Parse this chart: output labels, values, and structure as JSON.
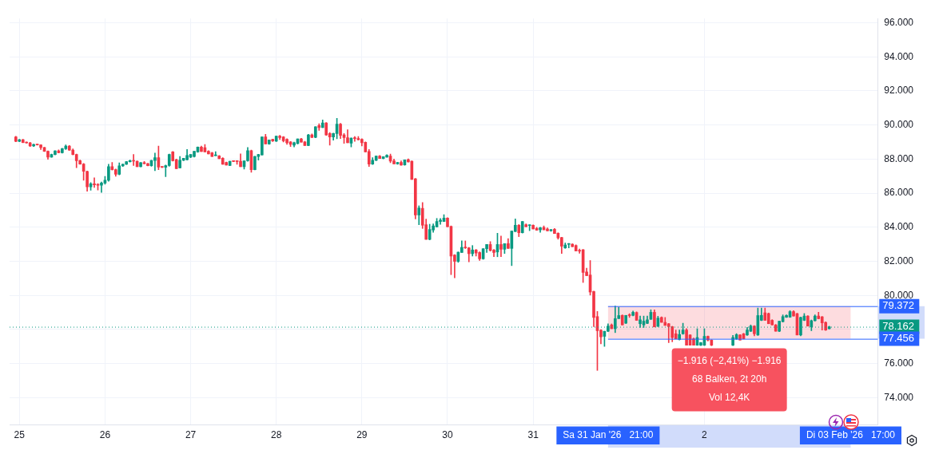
{
  "chart_data": {
    "type": "candlestick",
    "x": [
      "2026-01-24T23:00",
      "2026-01-25T00:00",
      "2026-01-25T01:00",
      "2026-01-25T02:00",
      "2026-01-25T03:00",
      "2026-01-25T04:00",
      "2026-01-25T05:00",
      "2026-01-25T06:00",
      "2026-01-25T07:00",
      "2026-01-25T08:00",
      "2026-01-25T09:00",
      "2026-01-25T10:00",
      "2026-01-25T11:00",
      "2026-01-25T12:00",
      "2026-01-25T13:00",
      "2026-01-25T14:00",
      "2026-01-25T15:00",
      "2026-01-25T16:00",
      "2026-01-25T17:00",
      "2026-01-25T18:00",
      "2026-01-25T19:00",
      "2026-01-25T20:00",
      "2026-01-25T21:00",
      "2026-01-25T22:00",
      "2026-01-25T23:00",
      "2026-01-26T00:00",
      "2026-01-26T01:00",
      "2026-01-26T02:00",
      "2026-01-26T03:00",
      "2026-01-26T04:00",
      "2026-01-26T05:00",
      "2026-01-26T06:00",
      "2026-01-26T07:00",
      "2026-01-26T08:00",
      "2026-01-26T09:00",
      "2026-01-26T10:00",
      "2026-01-26T11:00",
      "2026-01-26T12:00",
      "2026-01-26T13:00",
      "2026-01-26T14:00",
      "2026-01-26T15:00",
      "2026-01-26T16:00",
      "2026-01-26T17:00",
      "2026-01-26T18:00",
      "2026-01-26T19:00",
      "2026-01-26T20:00",
      "2026-01-26T21:00",
      "2026-01-26T22:00",
      "2026-01-26T23:00",
      "2026-01-27T00:00",
      "2026-01-27T01:00",
      "2026-01-27T02:00",
      "2026-01-27T03:00",
      "2026-01-27T04:00",
      "2026-01-27T05:00",
      "2026-01-27T06:00",
      "2026-01-27T07:00",
      "2026-01-27T08:00",
      "2026-01-27T09:00",
      "2026-01-27T10:00",
      "2026-01-27T11:00",
      "2026-01-27T12:00",
      "2026-01-27T13:00",
      "2026-01-27T14:00",
      "2026-01-27T15:00",
      "2026-01-27T16:00",
      "2026-01-27T17:00",
      "2026-01-27T18:00",
      "2026-01-27T19:00",
      "2026-01-27T20:00",
      "2026-01-27T21:00",
      "2026-01-27T22:00",
      "2026-01-27T23:00",
      "2026-01-28T00:00",
      "2026-01-28T01:00",
      "2026-01-28T02:00",
      "2026-01-28T03:00",
      "2026-01-28T04:00",
      "2026-01-28T05:00",
      "2026-01-28T06:00",
      "2026-01-28T07:00",
      "2026-01-28T08:00",
      "2026-01-28T09:00",
      "2026-01-28T10:00",
      "2026-01-28T11:00",
      "2026-01-28T12:00",
      "2026-01-28T13:00",
      "2026-01-28T14:00",
      "2026-01-28T15:00",
      "2026-01-28T16:00",
      "2026-01-28T17:00",
      "2026-01-28T18:00",
      "2026-01-28T19:00",
      "2026-01-28T20:00",
      "2026-01-28T21:00",
      "2026-01-28T22:00",
      "2026-01-28T23:00",
      "2026-01-29T00:00",
      "2026-01-29T01:00",
      "2026-01-29T02:00",
      "2026-01-29T03:00",
      "2026-01-29T04:00",
      "2026-01-29T05:00",
      "2026-01-29T06:00",
      "2026-01-29T07:00",
      "2026-01-29T08:00",
      "2026-01-29T09:00",
      "2026-01-29T10:00",
      "2026-01-29T11:00",
      "2026-01-29T12:00",
      "2026-01-29T13:00",
      "2026-01-29T14:00",
      "2026-01-29T15:00",
      "2026-01-29T16:00",
      "2026-01-29T17:00",
      "2026-01-29T18:00",
      "2026-01-29T19:00",
      "2026-01-29T20:00",
      "2026-01-29T21:00",
      "2026-01-29T22:00",
      "2026-01-29T23:00",
      "2026-01-30T00:00",
      "2026-01-30T01:00",
      "2026-01-30T02:00",
      "2026-01-30T03:00",
      "2026-01-30T04:00",
      "2026-01-30T05:00",
      "2026-01-30T06:00",
      "2026-01-30T07:00",
      "2026-01-30T08:00",
      "2026-01-30T09:00",
      "2026-01-30T10:00",
      "2026-01-30T11:00",
      "2026-01-30T12:00",
      "2026-01-30T13:00",
      "2026-01-30T14:00",
      "2026-01-30T15:00",
      "2026-01-30T16:00",
      "2026-01-30T17:00",
      "2026-01-30T18:00",
      "2026-01-30T19:00",
      "2026-01-30T20:00",
      "2026-01-30T21:00",
      "2026-01-30T22:00",
      "2026-01-30T23:00",
      "2026-01-31T00:00",
      "2026-01-31T01:00",
      "2026-01-31T02:00",
      "2026-01-31T03:00",
      "2026-01-31T04:00",
      "2026-01-31T05:00",
      "2026-01-31T06:00",
      "2026-01-31T07:00",
      "2026-01-31T08:00",
      "2026-01-31T09:00",
      "2026-01-31T10:00",
      "2026-01-31T11:00",
      "2026-01-31T12:00",
      "2026-01-31T13:00",
      "2026-01-31T14:00",
      "2026-01-31T15:00",
      "2026-01-31T16:00",
      "2026-01-31T17:00",
      "2026-01-31T18:00",
      "2026-01-31T19:00",
      "2026-01-31T20:00",
      "2026-01-31T21:00",
      "2026-01-31T22:00",
      "2026-01-31T23:00",
      "2026-02-01T00:00",
      "2026-02-01T01:00",
      "2026-02-01T02:00",
      "2026-02-01T03:00",
      "2026-02-01T04:00",
      "2026-02-01T05:00",
      "2026-02-01T06:00",
      "2026-02-01T07:00",
      "2026-02-01T08:00",
      "2026-02-01T09:00",
      "2026-02-01T10:00",
      "2026-02-01T11:00",
      "2026-02-01T12:00",
      "2026-02-01T13:00",
      "2026-02-01T14:00",
      "2026-02-01T15:00",
      "2026-02-01T16:00",
      "2026-02-01T17:00",
      "2026-02-01T18:00",
      "2026-02-01T19:00",
      "2026-02-01T20:00",
      "2026-02-01T21:00",
      "2026-02-01T22:00",
      "2026-02-01T23:00",
      "2026-02-02T00:00",
      "2026-02-02T01:00",
      "2026-02-02T02:00",
      "2026-02-02T08:00",
      "2026-02-02T09:00",
      "2026-02-02T10:00",
      "2026-02-02T11:00",
      "2026-02-02T12:00",
      "2026-02-02T13:00",
      "2026-02-02T14:00",
      "2026-02-02T15:00",
      "2026-02-02T16:00",
      "2026-02-02T17:00",
      "2026-02-02T18:00",
      "2026-02-02T19:00",
      "2026-02-02T20:00",
      "2026-02-02T21:00",
      "2026-02-02T22:00",
      "2026-02-02T23:00",
      "2026-02-03T00:00",
      "2026-02-03T01:00",
      "2026-02-03T02:00",
      "2026-02-03T03:00",
      "2026-02-03T04:00",
      "2026-02-03T05:00",
      "2026-02-03T06:00",
      "2026-02-03T07:00",
      "2026-02-03T08:00",
      "2026-02-03T09:00",
      "2026-02-03T10:00",
      "2026-02-03T11:00"
    ],
    "ohlc": [
      [
        89300,
        89340,
        89020,
        89040
      ],
      [
        89040,
        89160,
        89020,
        89140
      ],
      [
        89140,
        89160,
        88960,
        88970
      ],
      [
        88970,
        89010,
        88930,
        88950
      ],
      [
        88950,
        88990,
        88740,
        88770
      ],
      [
        88770,
        88880,
        88740,
        88860
      ],
      [
        88860,
        88880,
        88820,
        88830
      ],
      [
        88830,
        88850,
        88560,
        88680
      ],
      [
        88680,
        88700,
        88450,
        88460
      ],
      [
        88460,
        88480,
        87990,
        88120
      ],
      [
        88120,
        88300,
        88100,
        88270
      ],
      [
        88270,
        88500,
        88250,
        88480
      ],
      [
        88480,
        88540,
        88360,
        88370
      ],
      [
        88370,
        88640,
        88350,
        88610
      ],
      [
        88610,
        88840,
        88560,
        88770
      ],
      [
        88770,
        88800,
        88520,
        88530
      ],
      [
        88530,
        88600,
        88250,
        88270
      ],
      [
        88270,
        88300,
        87500,
        87910
      ],
      [
        87910,
        87950,
        87700,
        87710
      ],
      [
        87710,
        87750,
        86760,
        87280
      ],
      [
        87280,
        87300,
        86110,
        86370
      ],
      [
        86370,
        86620,
        86170,
        86550
      ],
      [
        86550,
        86900,
        86340,
        86490
      ],
      [
        86490,
        86560,
        86190,
        86470
      ],
      [
        86470,
        86660,
        86050,
        86600
      ],
      [
        86600,
        86990,
        86530,
        86760
      ],
      [
        86760,
        87700,
        86700,
        87560
      ],
      [
        87560,
        87810,
        87360,
        87380
      ],
      [
        87380,
        87420,
        86990,
        87110
      ],
      [
        87110,
        87780,
        87080,
        87600
      ],
      [
        87600,
        87710,
        87570,
        87700
      ],
      [
        87700,
        87860,
        87680,
        87850
      ],
      [
        87850,
        87940,
        87820,
        87910
      ],
      [
        87910,
        88270,
        87620,
        87880
      ],
      [
        87880,
        87900,
        87560,
        87560
      ],
      [
        87560,
        87800,
        87540,
        87790
      ],
      [
        87790,
        87860,
        87720,
        87730
      ],
      [
        87730,
        87760,
        87600,
        87610
      ],
      [
        87610,
        87930,
        87580,
        87920
      ],
      [
        87920,
        88360,
        87320,
        88090
      ],
      [
        88090,
        88760,
        87380,
        87530
      ],
      [
        87530,
        87560,
        87500,
        87520
      ],
      [
        87520,
        87650,
        86970,
        87620
      ],
      [
        87620,
        88300,
        87580,
        88270
      ],
      [
        88420,
        88450,
        87880,
        87900
      ],
      [
        87970,
        88000,
        87440,
        87440
      ],
      [
        87480,
        88150,
        87470,
        87930
      ],
      [
        87930,
        88050,
        87900,
        88050
      ],
      [
        87970,
        88560,
        87940,
        88220
      ],
      [
        88120,
        88270,
        88080,
        88270
      ],
      [
        88150,
        88460,
        88120,
        88460
      ],
      [
        88420,
        88720,
        88400,
        88710
      ],
      [
        88710,
        88770,
        88440,
        88450
      ],
      [
        88670,
        88860,
        88420,
        88420
      ],
      [
        88460,
        88490,
        88300,
        88300
      ],
      [
        88370,
        88400,
        88150,
        88150
      ],
      [
        88200,
        88440,
        88200,
        88230
      ],
      [
        88190,
        88210,
        88020,
        88020
      ],
      [
        88050,
        88080,
        87700,
        87700
      ],
      [
        87800,
        87830,
        87650,
        87650
      ],
      [
        87630,
        87870,
        87610,
        87870
      ],
      [
        87880,
        87900,
        87850,
        87860
      ],
      [
        87880,
        87900,
        87700,
        87860
      ],
      [
        87870,
        88310,
        87550,
        87560
      ],
      [
        87560,
        87900,
        87420,
        87900
      ],
      [
        87900,
        88680,
        87870,
        88490
      ],
      [
        88490,
        88530,
        87230,
        87380
      ],
      [
        87380,
        88170,
        87370,
        88150
      ],
      [
        88150,
        88290,
        87940,
        88270
      ],
      [
        88240,
        89300,
        88230,
        89300
      ],
      [
        89300,
        89450,
        88890,
        88890
      ],
      [
        88890,
        89130,
        88870,
        89130
      ],
      [
        89160,
        89180,
        89030,
        89060
      ],
      [
        89050,
        89350,
        89030,
        89350
      ],
      [
        89350,
        89400,
        89150,
        89260
      ],
      [
        89300,
        89330,
        89010,
        89080
      ],
      [
        89160,
        89200,
        88860,
        88960
      ],
      [
        89010,
        89030,
        88740,
        88860
      ],
      [
        88820,
        89000,
        88710,
        88960
      ],
      [
        88910,
        89190,
        88890,
        89190
      ],
      [
        89190,
        89220,
        88990,
        88990
      ],
      [
        89010,
        89040,
        88790,
        88790
      ],
      [
        88790,
        89450,
        88780,
        89420
      ],
      [
        89420,
        89480,
        89250,
        89280
      ],
      [
        89280,
        89900,
        89250,
        89900
      ],
      [
        89970,
        90080,
        89680,
        89850
      ],
      [
        89850,
        90300,
        89850,
        90120
      ],
      [
        90120,
        90150,
        89390,
        89420
      ],
      [
        89500,
        89560,
        88820,
        89300
      ],
      [
        89300,
        89520,
        89110,
        89500
      ],
      [
        89500,
        90390,
        89190,
        90050
      ],
      [
        90050,
        90100,
        89200,
        89390
      ],
      [
        89420,
        89500,
        88920,
        89260
      ],
      [
        89260,
        89720,
        88960,
        88960
      ],
      [
        88940,
        89250,
        88710,
        89230
      ],
      [
        89230,
        89330,
        89040,
        89210
      ],
      [
        89210,
        89330,
        89120,
        89130
      ],
      [
        89160,
        89200,
        88770,
        88960
      ],
      [
        88990,
        89010,
        88420,
        88420
      ],
      [
        88450,
        88570,
        87570,
        87710
      ],
      [
        87710,
        88080,
        87680,
        87930
      ],
      [
        87930,
        88190,
        87900,
        88180
      ],
      [
        88180,
        88210,
        88030,
        88030
      ],
      [
        88030,
        88140,
        88010,
        88140
      ],
      [
        88120,
        88260,
        88100,
        88230
      ],
      [
        88180,
        88300,
        87790,
        87880
      ],
      [
        87900,
        88000,
        87720,
        87720
      ],
      [
        87720,
        87820,
        87700,
        87810
      ],
      [
        87800,
        87900,
        87640,
        87650
      ],
      [
        87660,
        87960,
        87640,
        87960
      ],
      [
        87970,
        88020,
        87820,
        87830
      ],
      [
        87880,
        87900,
        86800,
        86810
      ],
      [
        86850,
        86870,
        84490,
        84720
      ],
      [
        84720,
        85260,
        84150,
        85130
      ],
      [
        85110,
        85450,
        83930,
        84120
      ],
      [
        84150,
        84480,
        83290,
        83290
      ],
      [
        83290,
        84180,
        83260,
        83870
      ],
      [
        83840,
        84200,
        83700,
        84080
      ],
      [
        84020,
        84520,
        84020,
        84340
      ],
      [
        84340,
        84520,
        84170,
        84420
      ],
      [
        84340,
        84740,
        84330,
        84540
      ],
      [
        84540,
        84560,
        84030,
        84030
      ],
      [
        84050,
        84080,
        81220,
        82310
      ],
      [
        82370,
        82400,
        81040,
        82000
      ],
      [
        82000,
        82550,
        81940,
        82540
      ],
      [
        82520,
        83200,
        82520,
        82820
      ],
      [
        82820,
        83200,
        82750,
        82790
      ],
      [
        82790,
        82820,
        81970,
        82450
      ],
      [
        82450,
        82930,
        82310,
        82670
      ],
      [
        82670,
        82700,
        82310,
        82490
      ],
      [
        82520,
        82560,
        82050,
        82150
      ],
      [
        82150,
        82750,
        82120,
        82740
      ],
      [
        82740,
        82990,
        82520,
        82990
      ],
      [
        82990,
        83160,
        82600,
        82640
      ],
      [
        82660,
        82700,
        82270,
        82520
      ],
      [
        82550,
        83650,
        82270,
        82990
      ],
      [
        82990,
        83480,
        82270,
        82710
      ],
      [
        82710,
        83040,
        82460,
        83040
      ],
      [
        83040,
        83330,
        82760,
        82760
      ],
      [
        82760,
        83780,
        81750,
        83780
      ],
      [
        83750,
        84490,
        83740,
        84120
      ],
      [
        84120,
        84160,
        83450,
        83680
      ],
      [
        83680,
        84340,
        83660,
        84340
      ],
      [
        84150,
        84200,
        84030,
        84030
      ],
      [
        84100,
        84150,
        83800,
        84140
      ],
      [
        84120,
        84140,
        83900,
        83900
      ],
      [
        83940,
        84000,
        83820,
        83830
      ],
      [
        83850,
        84000,
        83700,
        83970
      ],
      [
        83990,
        84080,
        83850,
        83850
      ],
      [
        83900,
        83960,
        83780,
        83790
      ],
      [
        83800,
        83880,
        83760,
        83860
      ],
      [
        83880,
        83930,
        83630,
        83630
      ],
      [
        83650,
        83680,
        83300,
        83380
      ],
      [
        83400,
        83420,
        82460,
        82890
      ],
      [
        82790,
        83080,
        82760,
        82960
      ],
      [
        83000,
        83050,
        82790,
        83010
      ],
      [
        83010,
        83030,
        82860,
        82860
      ],
      [
        82930,
        82970,
        82610,
        82610
      ],
      [
        82610,
        82720,
        82480,
        82600
      ],
      [
        82680,
        82700,
        80760,
        81350
      ],
      [
        81380,
        81600,
        81160,
        81160
      ],
      [
        81200,
        82050,
        80020,
        80200
      ],
      [
        80230,
        80250,
        78170,
        78710
      ],
      [
        78760,
        79060,
        75600,
        77930
      ],
      [
        77960,
        78000,
        77160,
        77570
      ],
      [
        77600,
        77900,
        77010,
        77900
      ],
      [
        77900,
        78340,
        77880,
        78200
      ],
      [
        78270,
        78330,
        78050,
        78050
      ],
      [
        78050,
        79380,
        77820,
        78640
      ],
      [
        78640,
        79310,
        78640,
        78820
      ],
      [
        78830,
        78860,
        78270,
        78270
      ],
      [
        78370,
        78830,
        78350,
        78830
      ],
      [
        78830,
        78930,
        78710,
        78820
      ],
      [
        78830,
        79080,
        78800,
        79010
      ],
      [
        79000,
        79040,
        78540,
        78540
      ],
      [
        78340,
        78790,
        78120,
        78570
      ],
      [
        78270,
        78790,
        78120,
        78490
      ],
      [
        78360,
        78790,
        78340,
        78570
      ],
      [
        78600,
        79160,
        78590,
        79010
      ],
      [
        79010,
        79160,
        78150,
        78150
      ],
      [
        78190,
        78780,
        78170,
        78670
      ],
      [
        78710,
        78740,
        78420,
        78420
      ],
      [
        78420,
        78710,
        78240,
        78240
      ],
      [
        78340,
        78360,
        77230,
        78170
      ],
      [
        78170,
        78190,
        77280,
        77530
      ],
      [
        77750,
        77970,
        77450,
        77450
      ],
      [
        77410,
        77970,
        77380,
        77710
      ],
      [
        77750,
        78370,
        77720,
        77970
      ],
      [
        77970,
        78050,
        77080,
        77080
      ],
      [
        77680,
        77700,
        77080,
        77080
      ],
      [
        77450,
        77500,
        77080,
        77080
      ],
      [
        77080,
        78050,
        77070,
        77530
      ],
      [
        77080,
        77250,
        77060,
        77230
      ],
      [
        77080,
        78050,
        77060,
        77600
      ],
      [
        77600,
        77620,
        77330,
        77380
      ],
      [
        77380,
        77400,
        77050,
        77080
      ],
      [
        77080,
        77660,
        77060,
        77530
      ],
      [
        77450,
        77760,
        77420,
        77700
      ],
      [
        77680,
        77700,
        77380,
        77380
      ],
      [
        77750,
        77780,
        77450,
        77450
      ],
      [
        77680,
        78120,
        77650,
        77970
      ],
      [
        77900,
        78270,
        77880,
        78200
      ],
      [
        78200,
        78230,
        77630,
        77750
      ],
      [
        77680,
        79260,
        77650,
        78820
      ],
      [
        78540,
        79260,
        78520,
        78830
      ],
      [
        78980,
        79260,
        78540,
        78540
      ],
      [
        78940,
        78970,
        78340,
        78340
      ],
      [
        78540,
        78580,
        78270,
        78270
      ],
      [
        78270,
        78300,
        77900,
        77900
      ],
      [
        77900,
        78500,
        77880,
        78490
      ],
      [
        78460,
        78860,
        78440,
        78760
      ],
      [
        78720,
        78860,
        78700,
        78830
      ],
      [
        78730,
        79110,
        78710,
        79050
      ],
      [
        79050,
        79110,
        78790,
        78790
      ],
      [
        78930,
        78960,
        77680,
        77680
      ],
      [
        77680,
        78730,
        77630,
        78710
      ],
      [
        78540,
        78940,
        78520,
        78790
      ],
      [
        78790,
        78820,
        78200,
        78200
      ],
      [
        78150,
        78560,
        77930,
        78520
      ],
      [
        78520,
        78860,
        78500,
        78790
      ],
      [
        78790,
        79010,
        78620,
        78640
      ],
      [
        78740,
        78770,
        77970,
        78390
      ],
      [
        78420,
        78450,
        77950,
        77970
      ],
      [
        78050,
        78200,
        78030,
        78162
      ]
    ],
    "xlim": [
      "2026-01-24T21:15",
      "2026-02-04T00:35"
    ],
    "xticks": [
      {
        "value": "2026-01-25",
        "label": "25"
      },
      {
        "value": "2026-01-26",
        "label": "26"
      },
      {
        "value": "2026-01-27",
        "label": "27"
      },
      {
        "value": "2026-01-28",
        "label": "28"
      },
      {
        "value": "2026-01-29",
        "label": "29"
      },
      {
        "value": "2026-01-30",
        "label": "30"
      },
      {
        "value": "2026-01-31",
        "label": "31"
      },
      {
        "value": "2026-01-31T21:00",
        "label": "Sa 31 Jan '26   21:00"
      },
      {
        "value": "2026-02-02",
        "label": "2"
      },
      {
        "value": "2026-02-03T17:00",
        "label": "Di 03 Feb '26   17:00"
      }
    ],
    "ylim": [
      72400,
      96250
    ],
    "yticks": [
      {
        "value": 74000,
        "label": "74.000"
      },
      {
        "value": 76000,
        "label": "76.000"
      },
      {
        "value": 78000,
        "label": null
      },
      {
        "value": 80000,
        "label": "80.000"
      },
      {
        "value": 82000,
        "label": "82.000"
      },
      {
        "value": 84000,
        "label": "84.000"
      },
      {
        "value": 86000,
        "label": "86.000"
      },
      {
        "value": 88000,
        "label": "88.000"
      },
      {
        "value": 90000,
        "label": "90.000"
      },
      {
        "value": 92000,
        "label": "92.000"
      },
      {
        "value": 94000,
        "label": "94.000"
      },
      {
        "value": 96000,
        "label": "96.000"
      }
    ],
    "grid": true,
    "ref_lines": [
      {
        "axis": "y",
        "value": 79372,
        "label": "79.372",
        "color": "#2962ff"
      },
      {
        "axis": "y",
        "value": 78162,
        "label": "78.162",
        "color": "#089981",
        "line_style": "dotted"
      },
      {
        "axis": "y",
        "value": 77456,
        "label": "77.456",
        "color": "#2962ff"
      }
    ],
    "bands": [
      {
        "axis": "x",
        "from": "2026-01-31T21:00",
        "to": "2026-02-03T17:00",
        "color": "#f7525f"
      }
    ],
    "annotations": [
      "−1.916 (−2,41%) −1.916",
      "68 Balken, 2t 20h",
      "Vol 12,4K"
    ]
  }
}
